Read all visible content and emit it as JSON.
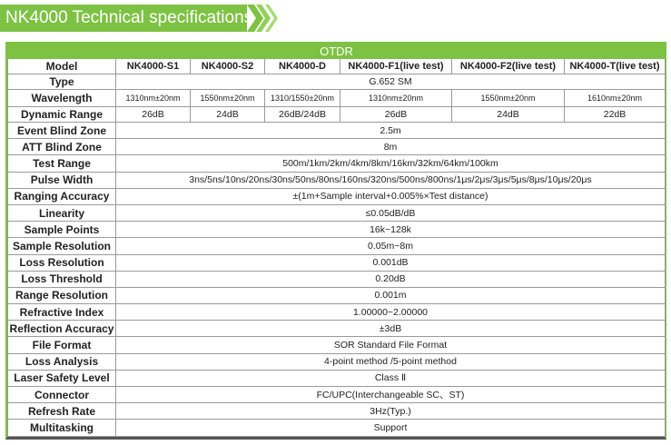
{
  "title": "NK4000 Technical specifications",
  "table": {
    "section": "OTDR",
    "model_label": "Model",
    "models": [
      "NK4000-S1",
      "NK4000-S2",
      "NK4000-D",
      "NK4000-F1(live test)",
      "NK4000-F2(live test)",
      "NK4000-T(live test)"
    ],
    "type": {
      "label": "Type",
      "value": "G.652  SM"
    },
    "wavelength": {
      "label": "Wavelength",
      "values": [
        "1310nm±20nm",
        "1550nm±20nm",
        "1310/1550±20nm",
        "1310nm±20nm",
        "1550nm±20nm",
        "1610nm±20nm"
      ]
    },
    "dynamic_range": {
      "label": "Dynamic Range",
      "values": [
        "26dB",
        "24dB",
        "26dB/24dB",
        "26dB",
        "24dB",
        "22dB"
      ]
    },
    "rows": [
      {
        "label": "Event Blind Zone",
        "value": "2.5m"
      },
      {
        "label": "ATT Blind Zone",
        "value": "8m"
      },
      {
        "label": "Test Range",
        "value": "500m/1km/2km/4km/8km/16km/32km/64km/100km"
      },
      {
        "label": "Pulse Width",
        "value": "3ns/5ns/10ns/20ns/30ns/50ns/80ns/160ns/320ns/500ns/800ns/1μs/2μs/3μs/5μs/8μs/10μs/20μs"
      },
      {
        "label": "Ranging Accuracy",
        "value": "±(1m+Sample interval+0.005%×Test distance)"
      },
      {
        "label": "Linearity",
        "value": "≤0.05dB/dB"
      },
      {
        "label": "Sample Points",
        "value": "16k~128k"
      },
      {
        "label": "Sample Resolution",
        "value": "0.05m~8m"
      },
      {
        "label": "Loss Resolution",
        "value": "0.001dB"
      },
      {
        "label": "Loss Threshold",
        "value": "0.20dB"
      },
      {
        "label": "Range Resolution",
        "value": "0.001m"
      },
      {
        "label": "Refractive Index",
        "value": "1.00000~2.00000"
      },
      {
        "label": "Reflection Accuracy",
        "value": "±3dB"
      },
      {
        "label": "File Format",
        "value": "SOR Standard File Format"
      },
      {
        "label": "Loss Analysis",
        "value": "4-point method /5-point method"
      },
      {
        "label": "Laser Safety Level",
        "value": "Class Ⅱ"
      },
      {
        "label": "Connector",
        "value": "FC/UPC(Interchangeable SC、ST)"
      },
      {
        "label": "Refresh Rate",
        "value": "3Hz(Typ.)"
      },
      {
        "label": "Multitasking",
        "value": "Support"
      }
    ]
  },
  "colors": {
    "accent": "#7dc243",
    "border": "#9a9a9a"
  }
}
